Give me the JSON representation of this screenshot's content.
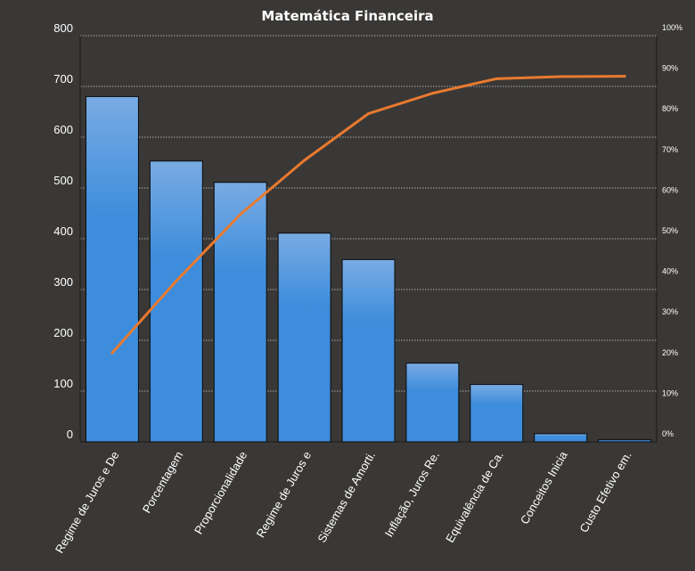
{
  "chart_data": {
    "type": "bar",
    "title": "Matemática Financeira",
    "categories": [
      "Regime de Juros e De",
      "Porcentagem",
      "Proporcionalidade",
      "Regime de Juros e",
      "Sistemas de Amorti.",
      "Inflação, Juros Re.",
      "Equivalência de Ca.",
      "Conceitos Inicia",
      "Custo Efetivo em."
    ],
    "values": [
      680,
      553,
      511,
      411,
      359,
      155,
      113,
      16,
      4
    ],
    "cumulative_percent": [
      21.9,
      39.6,
      56.0,
      69.3,
      80.8,
      85.8,
      89.4,
      89.9,
      90.0
    ],
    "ylim": [
      0,
      800
    ],
    "yticks": [
      0,
      100,
      200,
      300,
      400,
      500,
      600,
      700,
      800
    ],
    "y2lim": [
      0,
      100
    ],
    "y2ticks": [
      "0%",
      "10%",
      "20%",
      "30%",
      "40%",
      "50%",
      "60%",
      "70%",
      "80%",
      "90%",
      "100%"
    ],
    "grid": true,
    "colors": {
      "background": "#3a3836",
      "bar_top": "#79abe3",
      "bar_bottom": "#3d8ddc",
      "bar_edge": "#0a0a0a",
      "line": "#e97a2f",
      "text": "#ffffff"
    }
  }
}
